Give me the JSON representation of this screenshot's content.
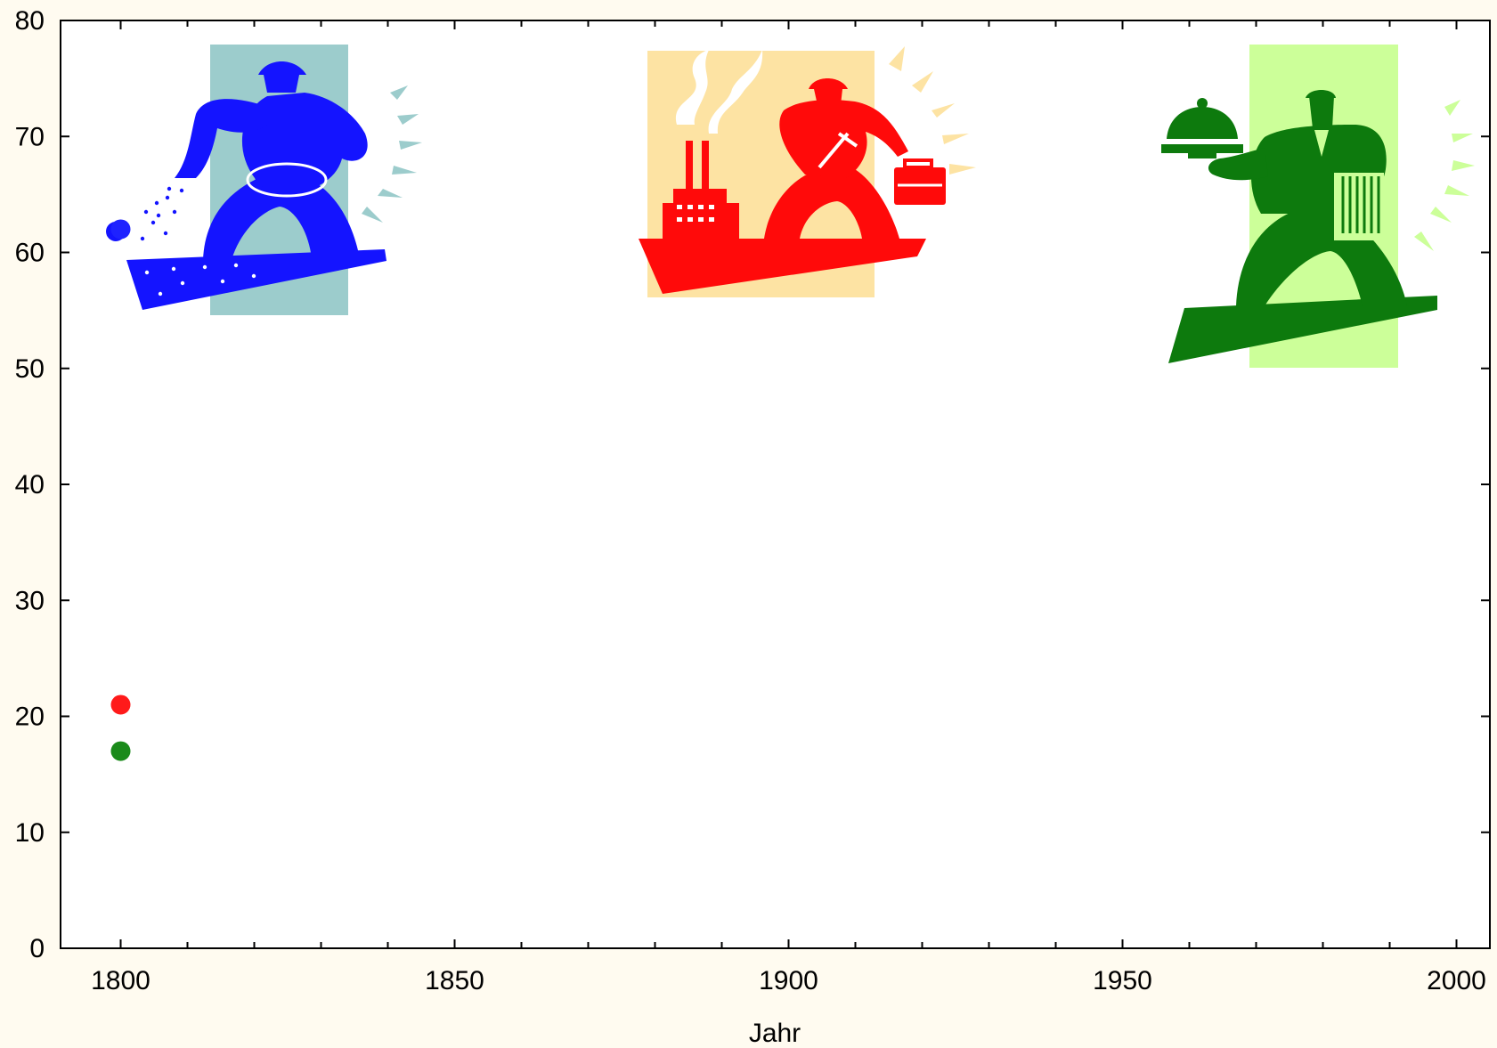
{
  "chart_data": {
    "type": "scatter",
    "title": "",
    "xlabel": "Jahr",
    "ylabel": "",
    "xlim": [
      1791,
      2005
    ],
    "ylim": [
      0,
      80
    ],
    "x_ticks": [
      1800,
      1850,
      1900,
      1950,
      2000
    ],
    "y_ticks": [
      0,
      10,
      20,
      30,
      40,
      50,
      60,
      70,
      80
    ],
    "grid": false,
    "series": [
      {
        "color": "#1e22ff",
        "points": [
          [
            1800,
            62
          ]
        ]
      },
      {
        "color": "#ff1a1a",
        "points": [
          [
            1800,
            21
          ]
        ]
      },
      {
        "color": "#1a8a1a",
        "points": [
          [
            1800,
            17
          ]
        ]
      }
    ]
  },
  "illustrations": [
    {
      "icon": "farmer-sowing-icon",
      "figure_color": "#1414ff",
      "panel_color": "#9ccccc"
    },
    {
      "icon": "industrial-worker-icon",
      "figure_color": "#ff0a0a",
      "panel_color": "#fde3a3"
    },
    {
      "icon": "service-waiter-icon",
      "figure_color": "#0d7a0d",
      "panel_color": "#ccff99"
    }
  ]
}
